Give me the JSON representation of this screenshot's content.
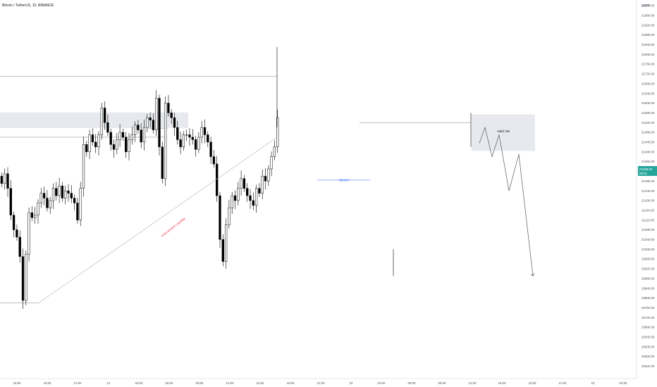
{
  "header": {
    "title": "Bitcoin / TetherUS, 15, BINANCE",
    "currency": "USDT"
  },
  "price_badge": {
    "price": "21538.50",
    "countdown": "09:21",
    "color": "#26a69a"
  },
  "colors": {
    "up_candle": "#ffffff",
    "down_candle": "#000000",
    "wick": "#000000",
    "zone_fill": "#e7e9ee",
    "annotation_red": "#f23645",
    "annotation_blue": "#2962ff",
    "line_gray": "#9598a1"
  },
  "annotations": {
    "trendline_label": "Inducement Liquidity",
    "order_block_label": "Valid OB",
    "choch_label": "ChoCH"
  },
  "chart_data": {
    "type": "candlestick",
    "title": "Bitcoin / TetherUS, 15, BINANCE",
    "y_unit": "USDT",
    "ylim": [
      20480,
      22040
    ],
    "y_ticks": [
      22000,
      21960,
      21920,
      21880,
      21840,
      21800,
      21760,
      21720,
      21680,
      21640,
      21600,
      21560,
      21520,
      21480,
      21440,
      21400,
      21360,
      21320,
      21280,
      21240,
      21200,
      21160,
      21120,
      21080,
      21040,
      21000,
      20960,
      20920,
      20880,
      20840,
      20800,
      20760,
      20720,
      20680,
      20640,
      20600,
      20560,
      20520
    ],
    "x_ticks": [
      "15:00",
      "18:00",
      "21:00",
      "21",
      "03:00",
      "06:00",
      "09:00",
      "12:00",
      "15:00",
      "18:00",
      "21:00",
      "22",
      "03:00",
      "06:00",
      "09:00",
      "12:00",
      "15:00",
      "18:00",
      "21:00",
      "23",
      "03:00"
    ],
    "grid": false,
    "ohlc_close_path": [
      21270,
      21310,
      21250,
      21140,
      21080,
      21050,
      20970,
      20790,
      20980,
      21150,
      21130,
      21140,
      21190,
      21230,
      21210,
      21170,
      21200,
      21250,
      21220,
      21260,
      21210,
      21240,
      21230,
      21210,
      21190,
      21120,
      21250,
      21430,
      21400,
      21470,
      21440,
      21420,
      21470,
      21580,
      21520,
      21480,
      21430,
      21410,
      21450,
      21480,
      21460,
      21400,
      21450,
      21470,
      21510,
      21490,
      21440,
      21500,
      21540,
      21530,
      21490,
      21620,
      21420,
      21290,
      21600,
      21560,
      21540,
      21500,
      21450,
      21420,
      21470,
      21470,
      21460,
      21450,
      21410,
      21460,
      21500,
      21470,
      21440,
      21380,
      21350,
      21220,
      21040,
      20950,
      21100,
      21170,
      21220,
      21200,
      21250,
      21290,
      21250,
      21220,
      21200,
      21180,
      21250,
      21230,
      21300,
      21280,
      21330,
      21380,
      21420,
      21540
    ],
    "order_block": {
      "top": 21555,
      "bottom": 21405
    },
    "supply_zone": {
      "top": 21560,
      "bottom": 21530
    },
    "levels": [
      21710,
      21460,
      21520,
      21284,
      20780
    ],
    "projection_path": [
      21435,
      21500,
      21380,
      21470,
      21240,
      21390,
      20890
    ]
  }
}
